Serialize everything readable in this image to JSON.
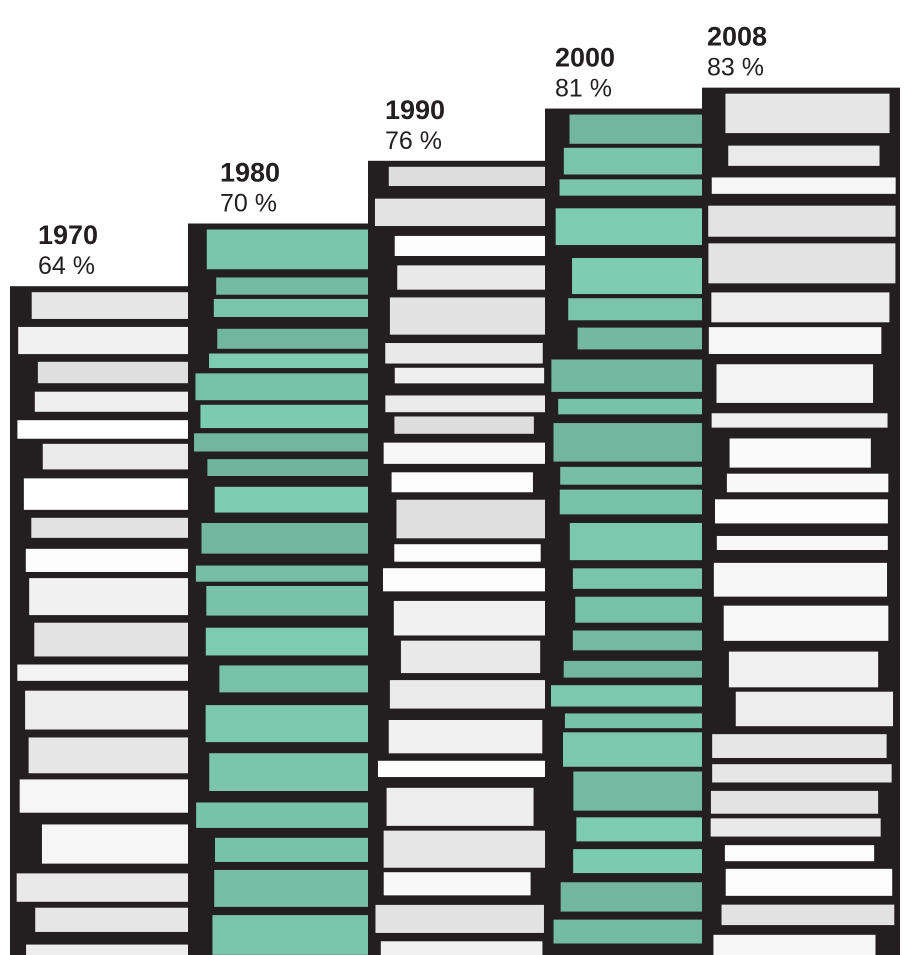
{
  "chart_data": {
    "type": "bar",
    "categories": [
      "1970",
      "1980",
      "1990",
      "2000",
      "2008"
    ],
    "values": [
      64,
      70,
      76,
      81,
      83
    ],
    "value_labels": [
      "64 %",
      "70 %",
      "76 %",
      "81 %",
      "83 %"
    ],
    "colors": [
      "#ffffff",
      "#7fcfb4",
      "#ffffff",
      "#7fcfb4",
      "#ffffff"
    ],
    "stack_color": "#231f20"
  }
}
